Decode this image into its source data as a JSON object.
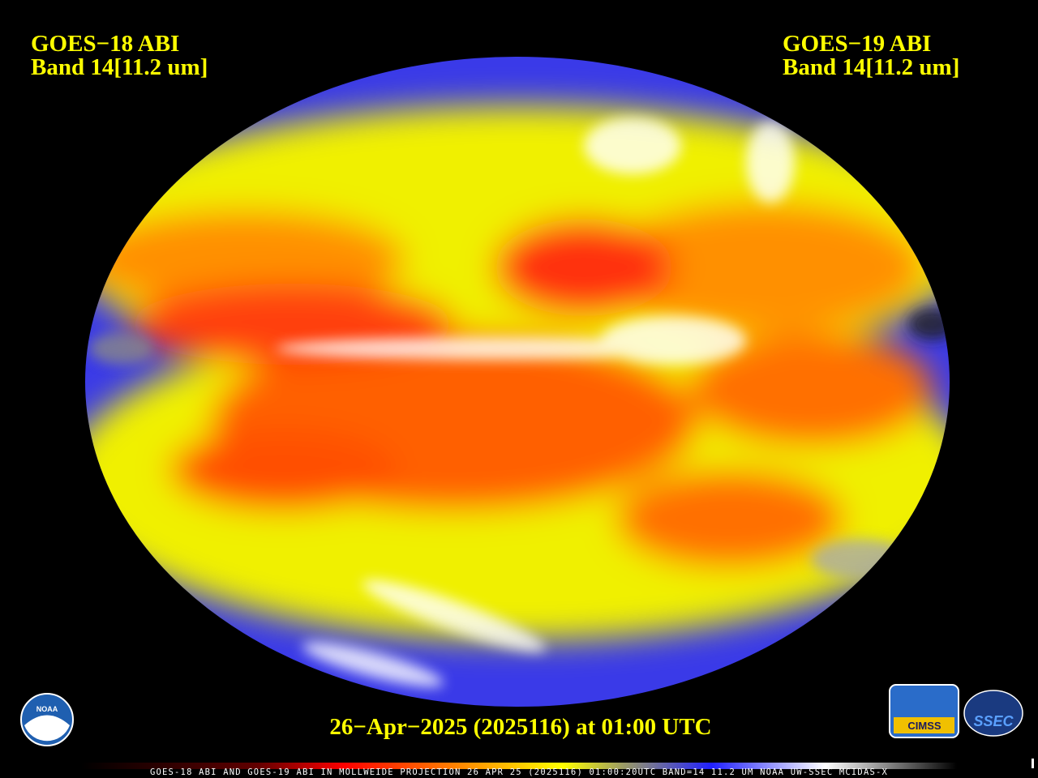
{
  "header_left": {
    "satellite": "GOES−18 ABI",
    "band": "Band 14[11.2 um]"
  },
  "header_right": {
    "satellite": "GOES−19 ABI",
    "band": "Band 14[11.2 um]"
  },
  "timestamp": "26−Apr−2025 (2025116) at 01:00 UTC",
  "footer_caption": "GOES-18 ABI AND GOES-19 ABI IN MOLLWEIDE PROJECTION 26 APR 25 (2025116) 01:00:20UTC BAND=14 11.2 UM NOAA UW-SSEC MCIDAS-X",
  "logos": {
    "noaa": "NOAA",
    "cimss": "CIMSS",
    "ssec": "SSEC"
  }
}
